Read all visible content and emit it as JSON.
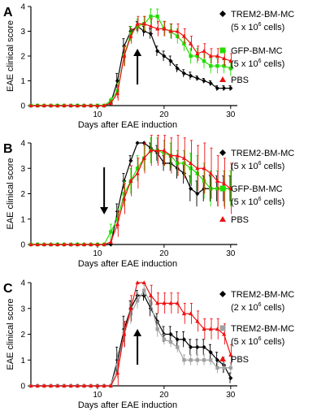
{
  "panel_letters": [
    "A",
    "B",
    "C"
  ],
  "colors": {
    "black": "#000000",
    "green": "#22dd00",
    "red": "#ee1111",
    "gray": "#a0a0a0"
  },
  "chart_data": [
    {
      "type": "line",
      "panel": "A",
      "xlabel": "Days after EAE induction",
      "ylabel": "EAE clinical score",
      "xlim": [
        0,
        31
      ],
      "ylim": [
        0,
        4
      ],
      "xticks": [
        10,
        20,
        30
      ],
      "yticks": [
        0,
        1,
        2,
        3,
        4
      ],
      "arrow_day": 16,
      "x": [
        0,
        1,
        2,
        3,
        4,
        5,
        6,
        7,
        8,
        9,
        10,
        11,
        12,
        13,
        14,
        15,
        16,
        17,
        18,
        19,
        20,
        21,
        22,
        23,
        24,
        25,
        26,
        27,
        28,
        29,
        30
      ],
      "series": [
        {
          "name": "TREM2-BM-MC",
          "sub": "(5 x 10",
          "sup": "6",
          "tail": " cells)",
          "color": "#000000",
          "marker": "diamond",
          "values": [
            0,
            0,
            0,
            0,
            0,
            0,
            0,
            0,
            0,
            0,
            0,
            0,
            0.1,
            1.0,
            2.4,
            3.0,
            3.2,
            3.0,
            2.9,
            2.2,
            2.0,
            1.8,
            1.5,
            1.3,
            1.2,
            1.1,
            1.0,
            0.9,
            0.7,
            0.7,
            0.7
          ],
          "errors": [
            0,
            0,
            0,
            0,
            0,
            0,
            0,
            0,
            0,
            0,
            0,
            0,
            0.1,
            0.3,
            0.3,
            0.2,
            0.2,
            0.2,
            0.2,
            0.2,
            0.2,
            0.2,
            0.15,
            0.15,
            0.15,
            0.1,
            0.1,
            0.1,
            0.1,
            0.1,
            0.1
          ]
        },
        {
          "name": "GFP-BM-MC",
          "sub": "(5 x 10",
          "sup": "6",
          "tail": " cells)",
          "color": "#22dd00",
          "marker": "square",
          "values": [
            0,
            0,
            0,
            0,
            0,
            0,
            0,
            0,
            0,
            0,
            0,
            0,
            0.2,
            0.6,
            2.0,
            2.9,
            3.2,
            3.3,
            3.6,
            3.6,
            3.1,
            3.0,
            2.8,
            2.5,
            2.0,
            2.0,
            1.8,
            1.6,
            1.6,
            1.6,
            1.5
          ],
          "errors": [
            0,
            0,
            0,
            0,
            0,
            0,
            0,
            0,
            0,
            0,
            0,
            0,
            0.1,
            0.3,
            0.4,
            0.3,
            0.3,
            0.3,
            0.3,
            0.3,
            0.3,
            0.3,
            0.3,
            0.3,
            0.3,
            0.3,
            0.3,
            0.3,
            0.3,
            0.3,
            0.3
          ]
        },
        {
          "name": "PBS",
          "color": "#ee1111",
          "marker": "triangle",
          "values": [
            0,
            0,
            0,
            0,
            0,
            0,
            0,
            0,
            0,
            0,
            0,
            0,
            0.1,
            0.5,
            2.0,
            2.8,
            3.3,
            3.3,
            3.2,
            3.1,
            3.1,
            3.0,
            3.0,
            2.8,
            2.5,
            2.1,
            2.2,
            2.0,
            2.0,
            1.9,
            1.8
          ],
          "errors": [
            0,
            0,
            0,
            0,
            0,
            0,
            0,
            0,
            0,
            0,
            0,
            0,
            0.1,
            0.3,
            0.4,
            0.3,
            0.3,
            0.3,
            0.3,
            0.3,
            0.3,
            0.3,
            0.3,
            0.3,
            0.3,
            0.3,
            0.3,
            0.3,
            0.3,
            0.3,
            0.3
          ]
        }
      ]
    },
    {
      "type": "line",
      "panel": "B",
      "xlabel": "Days after EAE induction",
      "ylabel": "EAE clinical score",
      "xlim": [
        0,
        31
      ],
      "ylim": [
        0,
        4
      ],
      "xticks": [
        10,
        20,
        30
      ],
      "yticks": [
        0,
        1,
        2,
        3,
        4
      ],
      "arrow_day": 11,
      "x": [
        0,
        1,
        2,
        3,
        4,
        5,
        6,
        7,
        8,
        9,
        10,
        11,
        12,
        13,
        14,
        15,
        16,
        17,
        18,
        19,
        20,
        21,
        22,
        23,
        24,
        25,
        26,
        27,
        28,
        29,
        30
      ],
      "series": [
        {
          "name": "TREM2-BM-MC",
          "sub": "(5 x 10",
          "sup": "6",
          "tail": " cells)",
          "color": "#000000",
          "marker": "diamond",
          "values": [
            0,
            0,
            0,
            0,
            0,
            0,
            0,
            0,
            0,
            0,
            0,
            0,
            0,
            1.3,
            2.5,
            3.3,
            4.0,
            4.0,
            3.8,
            3.6,
            3.2,
            3.2,
            3.0,
            2.8,
            2.2,
            2.0,
            2.2,
            2.2,
            2.2,
            2.2,
            2.2
          ],
          "errors": [
            0,
            0,
            0,
            0,
            0,
            0,
            0,
            0,
            0,
            0,
            0,
            0,
            0,
            0.3,
            0.3,
            0.2,
            0,
            0,
            0.2,
            0.3,
            0.3,
            0.3,
            0.4,
            0.4,
            0.5,
            0.5,
            0.5,
            0.5,
            0.5,
            0.5,
            0.5
          ]
        },
        {
          "name": "GFP-BM-MC",
          "sub": "(5 x 10",
          "sup": "6",
          "tail": " cells)",
          "color": "#22dd00",
          "marker": "square",
          "values": [
            0,
            0,
            0,
            0,
            0,
            0,
            0,
            0,
            0,
            0,
            0,
            0,
            0.5,
            1.0,
            2.0,
            2.5,
            3.0,
            3.4,
            3.7,
            3.7,
            3.6,
            3.5,
            3.2,
            3.2,
            3.0,
            2.8,
            2.5,
            2.2,
            2.2,
            2.2,
            2.2
          ],
          "errors": [
            0,
            0,
            0,
            0,
            0,
            0,
            0,
            0,
            0,
            0,
            0,
            0,
            0.3,
            0.4,
            0.5,
            0.5,
            0.5,
            0.5,
            0.5,
            0.5,
            0.5,
            0.5,
            0.5,
            0.5,
            0.6,
            0.7,
            0.7,
            0.7,
            0.7,
            0.7,
            0.7
          ]
        },
        {
          "name": "PBS",
          "color": "#ee1111",
          "marker": "triangle",
          "values": [
            0,
            0,
            0,
            0,
            0,
            0,
            0,
            0,
            0,
            0,
            0,
            0,
            0.1,
            0.8,
            1.8,
            2.5,
            2.8,
            3.4,
            3.7,
            3.7,
            3.7,
            3.5,
            3.5,
            3.4,
            3.2,
            3.0,
            3.0,
            2.8,
            2.5,
            2.4,
            2.2
          ],
          "errors": [
            0,
            0,
            0,
            0,
            0,
            0,
            0,
            0,
            0,
            0,
            0,
            0,
            0.1,
            0.5,
            0.6,
            0.6,
            0.6,
            0.6,
            0.6,
            0.6,
            0.6,
            0.7,
            0.8,
            0.8,
            0.9,
            0.9,
            1.0,
            1.0,
            1.0,
            1.0,
            1.0
          ]
        }
      ]
    },
    {
      "type": "line",
      "panel": "C",
      "xlabel": "Days after EAE induction",
      "ylabel": "EAE clinical score",
      "xlim": [
        0,
        31
      ],
      "ylim": [
        0,
        4
      ],
      "xticks": [
        10,
        20,
        30
      ],
      "yticks": [
        0,
        1,
        2,
        3,
        4
      ],
      "arrow_day": 16,
      "x": [
        0,
        1,
        2,
        3,
        4,
        5,
        6,
        7,
        8,
        9,
        10,
        11,
        12,
        13,
        14,
        15,
        16,
        17,
        18,
        19,
        20,
        21,
        22,
        23,
        24,
        25,
        26,
        27,
        28,
        29,
        30
      ],
      "series": [
        {
          "name": "TREM2-BM-MC",
          "sub": "(2 x 10",
          "sup": "6",
          "tail": " cells)",
          "color": "#000000",
          "marker": "diamond",
          "values": [
            0,
            0,
            0,
            0,
            0,
            0,
            0,
            0,
            0,
            0,
            0,
            0,
            0,
            1.0,
            2.2,
            3.0,
            3.5,
            3.5,
            3.0,
            2.5,
            2.0,
            2.0,
            1.8,
            1.8,
            1.5,
            1.5,
            1.5,
            1.3,
            1.0,
            0.8,
            0.3
          ],
          "errors": [
            0,
            0,
            0,
            0,
            0,
            0,
            0,
            0,
            0,
            0,
            0,
            0,
            0,
            0.5,
            0.5,
            0.3,
            0.2,
            0.2,
            0.3,
            0.3,
            0.3,
            0.3,
            0.3,
            0.3,
            0.3,
            0.3,
            0.3,
            0.3,
            0.3,
            0.3,
            0.2
          ]
        },
        {
          "name": "TREM2-BM-MC",
          "sub": "(5 x 10",
          "sup": "6",
          "tail": " cells)",
          "color": "#a0a0a0",
          "marker": "square",
          "values": [
            0,
            0,
            0,
            0,
            0,
            0,
            0,
            0,
            0,
            0,
            0,
            0,
            0,
            0.8,
            2.0,
            2.8,
            3.3,
            3.7,
            3.2,
            2.2,
            1.8,
            1.7,
            1.5,
            1.0,
            1.0,
            1.0,
            1.0,
            1.0,
            0.7,
            0.7,
            0.7
          ],
          "errors": [
            0,
            0,
            0,
            0,
            0,
            0,
            0,
            0,
            0,
            0,
            0,
            0,
            0,
            0.5,
            0.5,
            0.4,
            0.3,
            0.2,
            0.3,
            0.3,
            0.2,
            0.2,
            0.2,
            0.2,
            0.2,
            0.2,
            0.2,
            0.2,
            0.2,
            0.2,
            0.2
          ]
        },
        {
          "name": "PBS",
          "color": "#ee1111",
          "marker": "triangle",
          "values": [
            0,
            0,
            0,
            0,
            0,
            0,
            0,
            0,
            0,
            0,
            0,
            0,
            0,
            0.5,
            2.0,
            3.0,
            4.0,
            4.0,
            3.5,
            3.2,
            3.2,
            3.2,
            3.2,
            2.8,
            2.8,
            2.5,
            2.2,
            2.2,
            2.2,
            2.0,
            1.2
          ],
          "errors": [
            0,
            0,
            0,
            0,
            0,
            0,
            0,
            0,
            0,
            0,
            0,
            0,
            0,
            0.5,
            0.5,
            0.5,
            0,
            0,
            0.4,
            0.4,
            0.4,
            0.4,
            0.4,
            0.4,
            0.4,
            0.4,
            0.4,
            0.4,
            0.4,
            0.4,
            0.4
          ]
        }
      ]
    }
  ]
}
